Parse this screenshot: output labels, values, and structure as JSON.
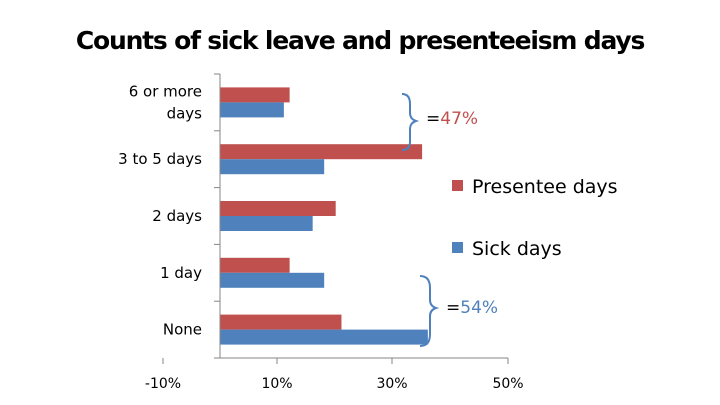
{
  "chart_data": {
    "type": "bar",
    "orientation": "horizontal",
    "title": "Counts of sick leave and presenteeism days",
    "categories": [
      [
        "6 or more",
        "days"
      ],
      [
        "3 to 5 days"
      ],
      [
        "2 days"
      ],
      [
        "1 day"
      ],
      [
        "None"
      ]
    ],
    "series": [
      {
        "name": "Presentee days",
        "color": "#C0504D",
        "values": [
          12,
          35,
          20,
          12,
          21
        ]
      },
      {
        "name": "Sick days",
        "color": "#4F81BD",
        "values": [
          11,
          18,
          16,
          18,
          36
        ]
      }
    ],
    "x_ticks": [
      "-10%",
      "10%",
      "30%",
      "50%"
    ],
    "xlim": [
      0,
      50
    ],
    "legend_position": "right",
    "annotations": [
      {
        "prefix": "=",
        "value": "47%",
        "color": "#C0504D",
        "brackets_categories": [
          "6 or more days",
          "3 to 5 days"
        ]
      },
      {
        "prefix": "=",
        "value": "54%",
        "color": "#4F81BD",
        "brackets_categories": [
          "1 day",
          "None"
        ]
      }
    ]
  }
}
